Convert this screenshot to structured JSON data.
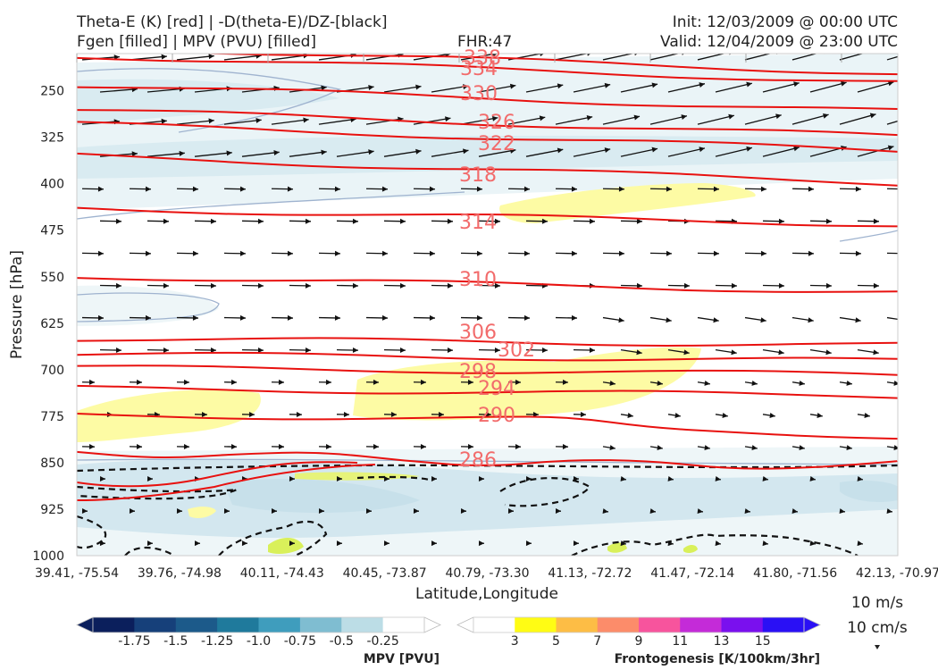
{
  "header": {
    "title_left_1": "Theta-E (K) [red] | -D(theta-E)/DZ-[black]",
    "title_left_2": "Fgen [filled] | MPV (PVU) [filled]",
    "title_center": "FHR:47",
    "title_right_1": "Init: 12/03/2009 @ 00:00 UTC",
    "title_right_2": "Valid: 12/04/2009 @ 23:00 UTC"
  },
  "chart_data": {
    "type": "cross-section",
    "xlabel": "Latitude,Longitude",
    "ylabel": "Pressure [hPa]",
    "x_ticks": [
      "39.41, -75.54",
      "39.76, -74.98",
      "40.11, -74.43",
      "40.45, -73.87",
      "40.79, -73.30",
      "41.13, -72.72",
      "41.47, -72.14",
      "41.80, -71.56",
      "42.13, -70.97"
    ],
    "y_ticks": [
      250,
      325,
      400,
      475,
      550,
      625,
      700,
      775,
      850,
      925,
      1000
    ],
    "ylim": [
      1000,
      190
    ],
    "theta_e_contours": [
      {
        "label": "338",
        "pressure": 200
      },
      {
        "label": "334",
        "pressure": 215
      },
      {
        "label": "330",
        "pressure": 262
      },
      {
        "label": "326",
        "pressure": 302
      },
      {
        "label": "322",
        "pressure": 325
      },
      {
        "label": "318",
        "pressure": 377
      },
      {
        "label": "314",
        "pressure": 453
      },
      {
        "label": "310",
        "pressure": 562
      },
      {
        "label": "306",
        "pressure": 655
      },
      {
        "label": "302",
        "pressure": 680
      },
      {
        "label": "298",
        "pressure": 702
      },
      {
        "label": "294",
        "pressure": 736
      },
      {
        "label": "290",
        "pressure": 779
      },
      {
        "label": "286",
        "pressure": 850
      }
    ],
    "colorbar_mpv": {
      "title": "MPV [PVU]",
      "ticks": [
        "-1.75",
        "-1.5",
        "-1.25",
        "-1.0",
        "-0.75",
        "-0.5",
        "-0.25"
      ],
      "colors": [
        "#0b1f5c",
        "#16407a",
        "#1c5a8a",
        "#1f7a9c",
        "#3f9dbd",
        "#7fbdd1",
        "#bcdde6",
        "#ffffff"
      ]
    },
    "colorbar_fgen": {
      "title": "Frontogenesis [K/100km/3hr]",
      "ticks": [
        "3",
        "5",
        "7",
        "9",
        "11",
        "13",
        "15"
      ],
      "colors": [
        "#ffffff",
        "#fffc14",
        "#fdbd45",
        "#fc8c6a",
        "#f7549d",
        "#c42bd8",
        "#7a10ee",
        "#2a10f5"
      ]
    },
    "wind_key": {
      "label_1": "10 m/s",
      "label_2": "10 cm/s"
    }
  }
}
